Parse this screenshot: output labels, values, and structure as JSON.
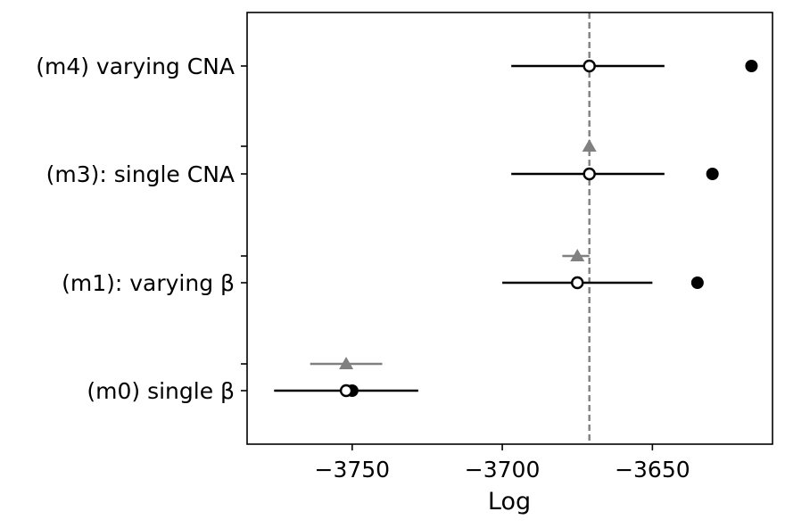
{
  "chart_data": {
    "type": "scatter",
    "title": "",
    "xlabel": "Log",
    "ylabel": "",
    "xlim": [
      -3785,
      -3610
    ],
    "x_ticks": [
      -3750,
      -3700,
      -3650
    ],
    "x_tick_labels": [
      "−3750",
      "−3700",
      "−3650"
    ],
    "categories": [
      "(m0) single β",
      "(m1): varying β",
      "(m3): single CNA",
      "(m4) varying CNA"
    ],
    "reference_line": {
      "x": -3671,
      "style": "dashed",
      "color": "#808080"
    },
    "series": [
      {
        "marker": "filled-circle",
        "color": "#000000",
        "points": [
          {
            "category": "(m0) single β",
            "x": -3750
          },
          {
            "category": "(m1): varying β",
            "x": -3635
          },
          {
            "category": "(m3): single CNA",
            "x": -3630
          },
          {
            "category": "(m4) varying CNA",
            "x": -3617
          }
        ]
      },
      {
        "marker": "open-circle",
        "color": "#000000",
        "errorbars": true,
        "points": [
          {
            "category": "(m0) single β",
            "x": -3752,
            "xerr_low": -3776,
            "xerr_high": -3728
          },
          {
            "category": "(m1): varying β",
            "x": -3675,
            "xerr_low": -3700,
            "xerr_high": -3650
          },
          {
            "category": "(m3): single CNA",
            "x": -3671,
            "xerr_low": -3697,
            "xerr_high": -3646
          },
          {
            "category": "(m4) varying CNA",
            "x": -3671,
            "xerr_low": -3697,
            "xerr_high": -3646
          }
        ]
      },
      {
        "marker": "triangle",
        "color": "#808080",
        "errorbars": true,
        "position": "between-categories",
        "points": [
          {
            "between": [
              "(m0) single β",
              "(m1): varying β"
            ],
            "x": -3752,
            "xerr_low": -3764,
            "xerr_high": -3740
          },
          {
            "between": [
              "(m1): varying β",
              "(m3): single CNA"
            ],
            "x": -3675,
            "xerr_low": -3680,
            "xerr_high": -3671
          },
          {
            "between": [
              "(m3): single CNA",
              "(m4) varying CNA"
            ],
            "x": -3671,
            "xerr_low": -3671,
            "xerr_high": -3671
          }
        ]
      }
    ]
  }
}
